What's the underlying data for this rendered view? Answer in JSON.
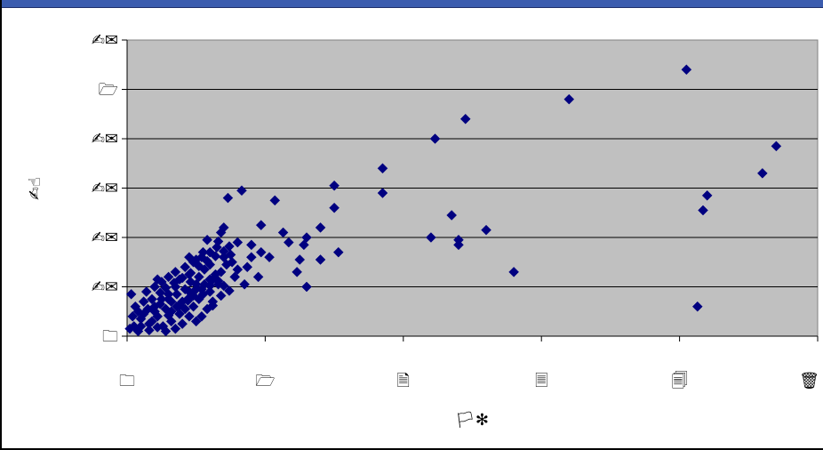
{
  "chart_data": {
    "type": "scatter",
    "title": "",
    "xlabel": "🏳✻",
    "ylabel": "✍☝",
    "xlim": [
      0,
      5
    ],
    "ylim": [
      0,
      6
    ],
    "x_tick_labels": [
      "🗀",
      "🗁",
      "🗎",
      "🗏",
      "🗐",
      "🗑"
    ],
    "y_tick_labels": [
      "🗀",
      "✍✉",
      "✍✉",
      "✍✉",
      "✍✉",
      "🗁",
      "✍✉"
    ],
    "grid": true,
    "legend": "none",
    "marker": "diamond",
    "color": "#000080",
    "plot_background": "#c0c0c0",
    "series": [
      {
        "points": [
          [
            4.05,
            5.4
          ],
          [
            3.2,
            4.8
          ],
          [
            2.45,
            4.4
          ],
          [
            2.23,
            4.0
          ],
          [
            4.7,
            3.85
          ],
          [
            4.6,
            3.3
          ],
          [
            4.2,
            2.85
          ],
          [
            4.17,
            2.55
          ],
          [
            4.13,
            0.6
          ],
          [
            1.85,
            3.4
          ],
          [
            1.85,
            2.9
          ],
          [
            1.5,
            3.05
          ],
          [
            1.5,
            2.6
          ],
          [
            1.53,
            1.7
          ],
          [
            1.4,
            2.2
          ],
          [
            1.4,
            1.55
          ],
          [
            1.3,
            2.0
          ],
          [
            1.28,
            1.85
          ],
          [
            1.25,
            1.55
          ],
          [
            1.3,
            1.0
          ],
          [
            1.23,
            1.3
          ],
          [
            2.35,
            2.45
          ],
          [
            2.2,
            2.0
          ],
          [
            2.4,
            1.85
          ],
          [
            2.4,
            1.95
          ],
          [
            2.6,
            2.15
          ],
          [
            2.8,
            1.3
          ],
          [
            1.13,
            2.1
          ],
          [
            0.83,
            2.95
          ],
          [
            1.07,
            2.75
          ],
          [
            0.97,
            2.25
          ],
          [
            0.97,
            1.7
          ],
          [
            1.03,
            1.6
          ],
          [
            0.73,
            2.8
          ],
          [
            0.7,
            2.2
          ],
          [
            0.68,
            2.1
          ],
          [
            0.9,
            1.6
          ],
          [
            0.87,
            1.4
          ],
          [
            1.17,
            1.9
          ],
          [
            0.85,
            1.05
          ],
          [
            0.95,
            1.2
          ],
          [
            0.9,
            1.85
          ],
          [
            0.8,
            1.9
          ],
          [
            0.58,
            1.95
          ],
          [
            0.5,
            1.55
          ],
          [
            0.55,
            1.7
          ],
          [
            0.45,
            1.6
          ],
          [
            0.65,
            1.8
          ],
          [
            0.7,
            1.6
          ],
          [
            0.75,
            1.65
          ],
          [
            0.6,
            1.15
          ],
          [
            0.45,
            1.25
          ],
          [
            0.5,
            1.05
          ],
          [
            0.38,
            1.15
          ],
          [
            0.55,
            0.85
          ],
          [
            0.4,
            0.7
          ],
          [
            0.6,
            0.9
          ],
          [
            0.45,
            0.9
          ],
          [
            0.35,
            1.0
          ],
          [
            0.3,
            0.85
          ],
          [
            0.25,
            0.75
          ],
          [
            0.2,
            0.6
          ],
          [
            0.15,
            0.55
          ],
          [
            0.1,
            0.35
          ],
          [
            0.05,
            0.2
          ],
          [
            0.02,
            0.15
          ],
          [
            0.08,
            0.1
          ],
          [
            0.12,
            0.45
          ],
          [
            0.18,
            0.3
          ],
          [
            0.22,
            0.4
          ],
          [
            0.28,
            0.55
          ],
          [
            0.32,
            0.7
          ],
          [
            0.03,
            0.85
          ],
          [
            0.08,
            0.5
          ],
          [
            0.14,
            0.9
          ],
          [
            0.2,
            1.0
          ],
          [
            0.25,
            1.1
          ],
          [
            0.3,
            1.2
          ],
          [
            0.35,
            1.3
          ],
          [
            0.22,
            1.15
          ],
          [
            0.18,
            0.75
          ],
          [
            0.26,
            0.2
          ],
          [
            0.32,
            0.3
          ],
          [
            0.38,
            0.45
          ],
          [
            0.42,
            0.55
          ],
          [
            0.48,
            0.6
          ],
          [
            0.52,
            0.75
          ],
          [
            0.45,
            0.4
          ],
          [
            0.4,
            0.25
          ],
          [
            0.35,
            0.15
          ],
          [
            0.28,
            0.1
          ],
          [
            0.16,
            0.12
          ],
          [
            0.1,
            0.2
          ],
          [
            0.2,
            0.5
          ],
          [
            0.24,
            0.65
          ],
          [
            0.3,
            0.75
          ],
          [
            0.36,
            0.85
          ],
          [
            0.42,
            0.95
          ],
          [
            0.46,
            1.1
          ],
          [
            0.52,
            1.2
          ],
          [
            0.56,
            1.35
          ],
          [
            0.6,
            1.45
          ],
          [
            0.64,
            1.25
          ],
          [
            0.66,
            1.05
          ],
          [
            0.62,
            0.7
          ],
          [
            0.58,
            0.55
          ],
          [
            0.54,
            0.4
          ],
          [
            0.5,
            0.3
          ],
          [
            0.12,
            0.7
          ],
          [
            0.06,
            0.6
          ],
          [
            0.04,
            0.4
          ],
          [
            0.16,
            0.25
          ],
          [
            0.22,
            0.18
          ],
          [
            0.3,
            0.42
          ],
          [
            0.36,
            0.6
          ],
          [
            0.44,
            0.75
          ],
          [
            0.5,
            0.95
          ],
          [
            0.56,
            1.05
          ],
          [
            0.62,
            1.15
          ],
          [
            0.68,
            1.3
          ],
          [
            0.72,
            1.45
          ],
          [
            0.76,
            1.5
          ],
          [
            0.8,
            1.35
          ],
          [
            0.78,
            1.2
          ],
          [
            0.24,
            0.88
          ],
          [
            0.28,
            0.98
          ],
          [
            0.34,
            1.08
          ],
          [
            0.4,
            1.18
          ],
          [
            0.46,
            1.28
          ],
          [
            0.52,
            1.42
          ],
          [
            0.58,
            1.52
          ],
          [
            0.64,
            1.62
          ],
          [
            0.7,
            1.72
          ],
          [
            0.74,
            1.82
          ],
          [
            0.66,
            1.92
          ],
          [
            0.6,
            1.7
          ],
          [
            0.54,
            1.6
          ],
          [
            0.48,
            1.5
          ],
          [
            0.42,
            1.4
          ],
          [
            0.32,
            0.5
          ],
          [
            0.38,
            0.62
          ],
          [
            0.44,
            0.72
          ],
          [
            0.48,
            0.82
          ],
          [
            0.54,
            0.95
          ],
          [
            0.6,
            1.02
          ],
          [
            0.66,
            1.12
          ],
          [
            0.7,
            1.02
          ],
          [
            0.74,
            0.92
          ],
          [
            0.68,
            0.82
          ],
          [
            0.62,
            0.62
          ]
        ]
      }
    ]
  }
}
